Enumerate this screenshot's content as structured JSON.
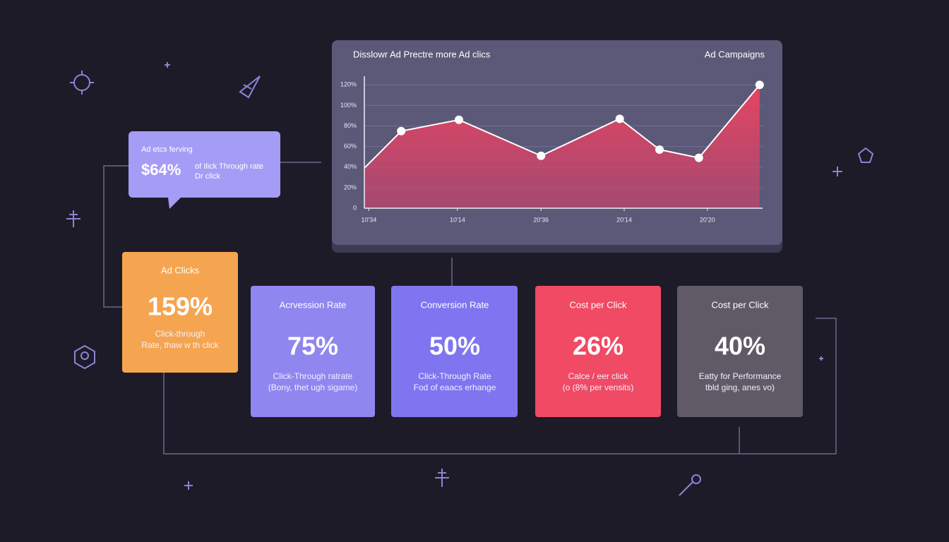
{
  "chart_data": {
    "type": "area",
    "title": "Disslowr Ad Prectre more Ad clics",
    "subtitle": "Ad Campaigns",
    "x": [
      0,
      0.74,
      1.9,
      3.55,
      5.13,
      5.93,
      6.72,
      7.94
    ],
    "values": [
      39,
      75,
      86,
      51,
      87,
      57,
      49,
      120
    ],
    "color": "#e8435f",
    "xlim": [
      0,
      8
    ],
    "ylim": [
      0,
      125
    ],
    "yticks": [
      0,
      {
        "value": 20,
        "label": "20%"
      },
      {
        "value": 40,
        "label": "40%"
      },
      {
        "value": 60,
        "label": "60%"
      },
      {
        "value": 80,
        "label": "80%"
      },
      {
        "value": 100,
        "label": "100%"
      },
      {
        "value": 120,
        "label": "120%"
      }
    ],
    "xticks": [
      {
        "value": 0.09,
        "label": "10'34"
      },
      {
        "value": 1.87,
        "label": "10'14"
      },
      {
        "value": 3.55,
        "label": "20'36"
      },
      {
        "value": 5.22,
        "label": "20'14"
      },
      {
        "value": 6.89,
        "label": "20'20"
      }
    ],
    "grid": true
  },
  "callout": {
    "title": "Ad etcs ferving",
    "value": "$64%",
    "text": [
      "of Ilick Through rate",
      "Dr click"
    ]
  },
  "cards": [
    {
      "title": "Ad Clicks",
      "value": "159%",
      "text": [
        "Click-through",
        "Rate, thaw w th click"
      ]
    },
    {
      "title": "Acrvession Rate",
      "value": "75%",
      "text": [
        "Click-Through ratrate",
        "(Bony, thet ugh sigame)"
      ]
    },
    {
      "title": "Conversion Rate",
      "value": "50%",
      "text": [
        "Click-Through Rate",
        "Fod of eaacs erhange"
      ]
    },
    {
      "title": "Cost per Click",
      "value": "26%",
      "text": [
        "Calce / eer click",
        "(o (8% per vensits)"
      ]
    },
    {
      "title": "Cost per Click",
      "value": "40%",
      "text": [
        "Eatty for Performance",
        "tbld ging, anes vo)"
      ]
    }
  ]
}
